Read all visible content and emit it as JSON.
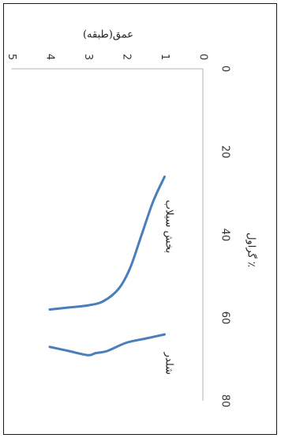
{
  "chart_data": {
    "type": "line",
    "orientation": "rotated-90-clockwise",
    "title": "",
    "xlabel": "گراول ٪",
    "ylabel": "عمق(طبقه)",
    "xlim": [
      0,
      80
    ],
    "ylim": [
      0,
      5
    ],
    "x_ticks": [
      "0",
      "20",
      "40",
      "60",
      "80"
    ],
    "y_ticks": [
      "0",
      "1",
      "2",
      "3",
      "4",
      "5"
    ],
    "grid": false,
    "colors": {
      "line": "#4a7ebb",
      "axis": "#b3b3b3",
      "text": "#222222"
    },
    "series": [
      {
        "name": "بخش سیلاب",
        "x": [
          26,
          32,
          40,
          48,
          53,
          56,
          57,
          57.5,
          58
        ],
        "y": [
          1,
          1.3,
          1.6,
          1.9,
          2.2,
          2.6,
          3.0,
          3.5,
          4.0
        ]
      },
      {
        "name": "شلدر",
        "x": [
          64,
          65,
          66,
          68,
          68.5,
          69,
          68,
          67
        ],
        "y": [
          1,
          1.5,
          2.0,
          2.5,
          2.8,
          3.0,
          3.5,
          4.0
        ]
      }
    ]
  }
}
